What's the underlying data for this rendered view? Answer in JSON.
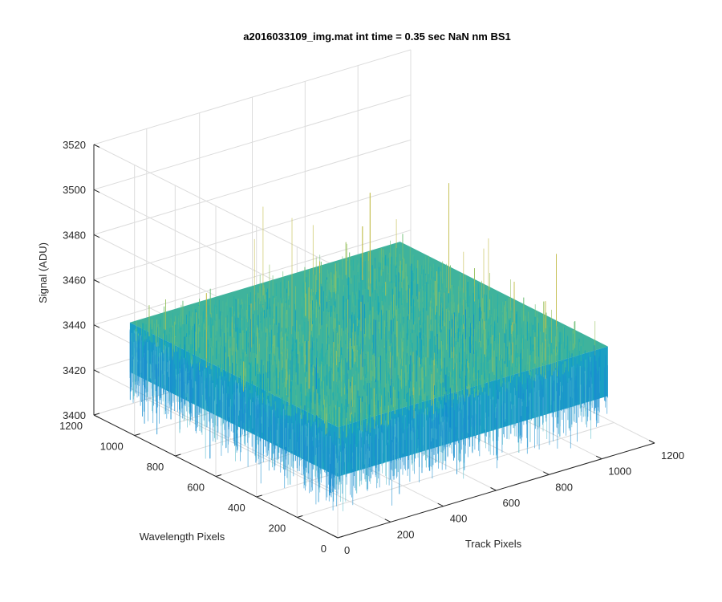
{
  "chart_data": {
    "type": "surface",
    "title": "a2016033109_img.mat int time = 0.35 sec  NaN nm BS1",
    "xlabel": "Track Pixels",
    "ylabel": "Wavelength Pixels",
    "zlabel": "Signal (ADU)",
    "xlim": [
      0,
      1200
    ],
    "ylim": [
      0,
      1200
    ],
    "zlim": [
      3400,
      3520
    ],
    "x_ticks": [
      0,
      200,
      400,
      600,
      800,
      1000,
      1200
    ],
    "y_ticks": [
      0,
      200,
      400,
      600,
      800,
      1000,
      1200
    ],
    "z_ticks": [
      3400,
      3420,
      3440,
      3460,
      3480,
      3500,
      3520
    ],
    "x_tick_labels": [
      "0",
      "200",
      "400",
      "600",
      "800",
      "1000",
      "1200"
    ],
    "y_tick_labels": [
      "0",
      "200",
      "400",
      "600",
      "800",
      "1000",
      "1200"
    ],
    "z_tick_labels": [
      "3400",
      "3420",
      "3440",
      "3460",
      "3480",
      "3500",
      "3520"
    ],
    "data_extent": {
      "x": [
        1,
        1024
      ],
      "y": [
        1,
        1024
      ]
    },
    "signal": {
      "mean": 3445,
      "typical_min": 3425,
      "typical_max": 3465,
      "extreme_min": 3405,
      "extreme_max": 3500
    },
    "grid": true,
    "colormap": "parula"
  }
}
